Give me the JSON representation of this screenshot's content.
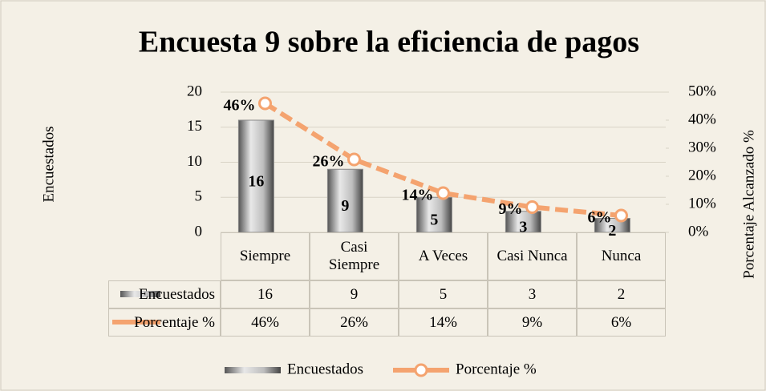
{
  "chart_data": {
    "type": "bar",
    "title": "Encuesta 9 sobre la eficiencia de pagos",
    "categories": [
      "Siempre",
      "Casi Siempre",
      "A Veces",
      "Casi Nunca",
      "Nunca"
    ],
    "series": [
      {
        "name": "Encuestados",
        "color": "#8a8a8a",
        "values": [
          16,
          9,
          5,
          3,
          2
        ]
      },
      {
        "name": "Porcentaje %",
        "color": "#f4a36f",
        "axis": "y2",
        "values": [
          46,
          26,
          14,
          9,
          6
        ],
        "value_labels": [
          "46%",
          "26%",
          "14%",
          "9%",
          "6%"
        ]
      }
    ],
    "y_label": "Encuestados",
    "y2_label": "Porcentaje Alcanzado %",
    "ylim": [
      0,
      20
    ],
    "yticks": [
      0,
      5,
      10,
      15,
      20
    ],
    "y2lim": [
      0,
      50
    ],
    "y2ticks": [
      {
        "value": 0,
        "label": "0%"
      },
      {
        "value": 10,
        "label": "10%"
      },
      {
        "value": 20,
        "label": "20%"
      },
      {
        "value": 30,
        "label": "30%"
      },
      {
        "value": 40,
        "label": "40%"
      },
      {
        "value": 50,
        "label": "50%"
      }
    ],
    "grid": true,
    "legend": "bottom",
    "data_table": true
  }
}
